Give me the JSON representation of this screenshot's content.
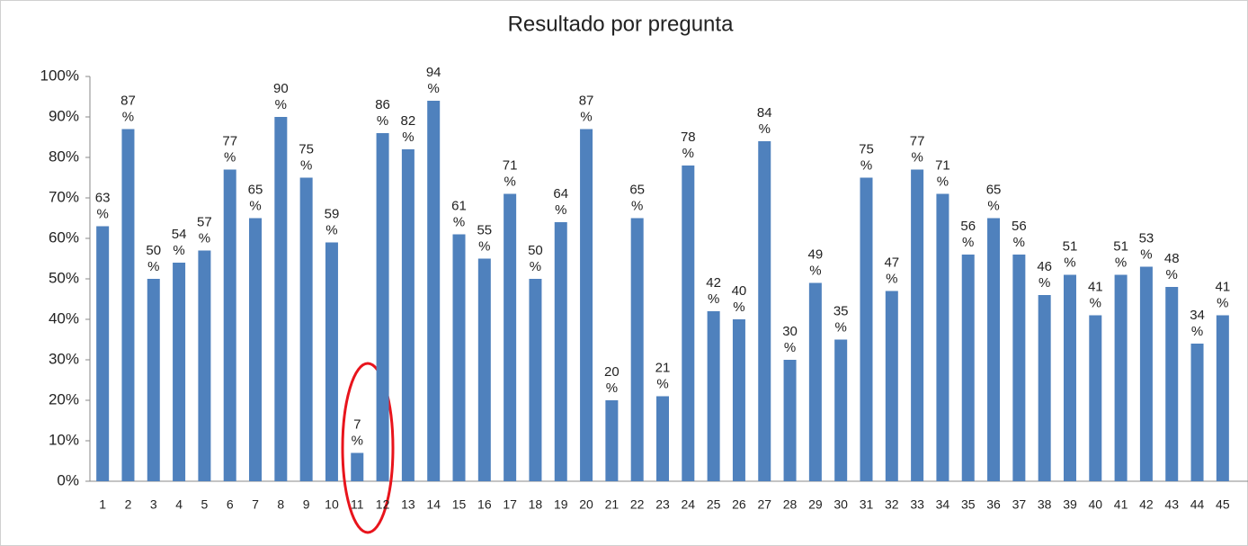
{
  "chart_data": {
    "type": "bar",
    "title": "Resultado por pregunta",
    "categories": [
      "1",
      "2",
      "3",
      "4",
      "5",
      "6",
      "7",
      "8",
      "9",
      "10",
      "11",
      "12",
      "13",
      "14",
      "15",
      "16",
      "17",
      "18",
      "19",
      "20",
      "21",
      "22",
      "23",
      "24",
      "25",
      "26",
      "27",
      "28",
      "29",
      "30",
      "31",
      "32",
      "33",
      "34",
      "35",
      "36",
      "37",
      "38",
      "39",
      "40",
      "41",
      "42",
      "43",
      "44",
      "45"
    ],
    "values": [
      63,
      87,
      50,
      54,
      57,
      77,
      65,
      90,
      75,
      59,
      7,
      86,
      82,
      94,
      61,
      55,
      71,
      50,
      64,
      87,
      20,
      65,
      21,
      78,
      42,
      40,
      84,
      30,
      49,
      35,
      75,
      47,
      77,
      71,
      56,
      65,
      56,
      46,
      51,
      41,
      51,
      53,
      48,
      34,
      41
    ],
    "value_labels": [
      "63%",
      "87%",
      "50%",
      "54%",
      "57%",
      "77%",
      "65%",
      "90%",
      "75%",
      "59%",
      "7%",
      "86%",
      "82%",
      "94%",
      "61%",
      "55%",
      "71%",
      "50%",
      "64%",
      "87%",
      "20%",
      "65%",
      "21%",
      "78%",
      "42%",
      "40%",
      "84%",
      "30%",
      "49%",
      "35%",
      "75%",
      "47%",
      "77%",
      "71%",
      "56%",
      "65%",
      "56%",
      "46%",
      "51%",
      "41%",
      "51%",
      "53%",
      "48%",
      "34%",
      "41%"
    ],
    "color": "#4f81bd",
    "ylim": [
      0,
      100
    ],
    "yticks": [
      {
        "value": 0,
        "label": "0%"
      },
      {
        "value": 10,
        "label": "10%"
      },
      {
        "value": 20,
        "label": "20%"
      },
      {
        "value": 30,
        "label": "30%"
      },
      {
        "value": 40,
        "label": "40%"
      },
      {
        "value": 50,
        "label": "50%"
      },
      {
        "value": 60,
        "label": "60%"
      },
      {
        "value": 70,
        "label": "70%"
      },
      {
        "value": 80,
        "label": "80%"
      },
      {
        "value": 90,
        "label": "90%"
      },
      {
        "value": 100,
        "label": "100%"
      }
    ],
    "grid": false
  }
}
